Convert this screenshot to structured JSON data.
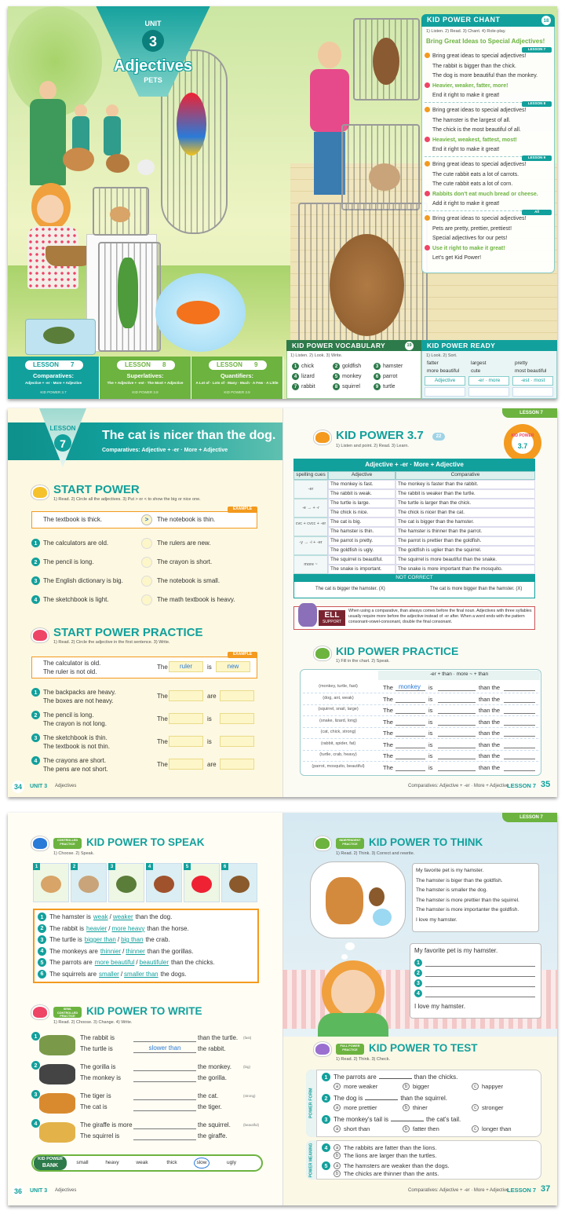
{
  "spread1": {
    "unit": {
      "label": "UNIT",
      "number": "3",
      "title": "Adjectives",
      "subtitle": "PETS"
    },
    "lessons": [
      {
        "label": "LESSON",
        "number": "7",
        "topic": "Comparatives:",
        "detail": "Adjective + -er · More + Adjective",
        "code": "KID POWER 3.7"
      },
      {
        "label": "LESSON",
        "number": "8",
        "topic": "Superlatives:",
        "detail": "The + Adjective + -est · The Most + Adjective",
        "code": "KID POWER 3.8"
      },
      {
        "label": "LESSON",
        "number": "9",
        "topic": "Quantifiers:",
        "detail": "A Lot of · Lots of · Many · Much · A Few · A Little",
        "code": "KID POWER 3.9"
      }
    ],
    "chant": {
      "title": "KID POWER CHANT",
      "page": "18",
      "instructions": "1) Listen. 2) Read. 3) Chant. 4) Role-play.",
      "heading": "Bring Great Ideas to Special Adjectives!",
      "verses": [
        {
          "tag": "LESSON 7",
          "lines": [
            "Bring great ideas to special adjectives!",
            "The rabbit is bigger than the chick.",
            "The dog is more beautiful than the monkey.",
            "Heavier, weaker, fatter, more!",
            "End it right to make it great!"
          ]
        },
        {
          "tag": "LESSON 8",
          "lines": [
            "Bring great ideas to special adjectives!",
            "The hamster is the largest of all.",
            "The chick is the most beautiful of all.",
            "Heaviest, weakest, fattest, most!",
            "End it right to make it great!"
          ]
        },
        {
          "tag": "LESSON 9",
          "lines": [
            "Bring great ideas to special adjectives!",
            "The cute rabbit eats a lot of carrots.",
            "The cute rabbit eats a lot of corn.",
            "Rabbits don't eat much bread or cheese.",
            "Add it right to make it great!"
          ]
        },
        {
          "tag": "All",
          "lines": [
            "Bring great ideas to special adjectives!",
            "Pets are pretty, prettier, prettiest!",
            "Special adjectives for our pets!",
            "Use it right to make it great!",
            "Let's get Kid Power!"
          ]
        }
      ]
    },
    "vocabulary": {
      "title": "KID POWER VOCABULARY",
      "page": "19",
      "instructions": "1) Listen. 2) Look. 3) Write.",
      "words": [
        {
          "number": "1",
          "word": "chick"
        },
        {
          "number": "2",
          "word": "goldfish"
        },
        {
          "number": "3",
          "word": "hamster"
        },
        {
          "number": "4",
          "word": "lizard"
        },
        {
          "number": "5",
          "word": "monkey"
        },
        {
          "number": "6",
          "word": "parrot"
        },
        {
          "number": "7",
          "word": "rabbit"
        },
        {
          "number": "8",
          "word": "squirrel"
        },
        {
          "number": "9",
          "word": "turtle"
        }
      ]
    },
    "ready": {
      "title": "KID POWER READY",
      "instructions": "1) Look. 2) Sort.",
      "words": [
        "fatter",
        "largest",
        "pretty",
        "more beautiful",
        "cute",
        "most beautiful"
      ],
      "columns": [
        "Adjective",
        "-er · more",
        "-est · most"
      ]
    }
  },
  "spread2": {
    "tab": "LESSON 7",
    "header": {
      "label": "LESSON",
      "number": "7",
      "title": "The cat is nicer than the dog.",
      "subtitle": "Comparatives: Adjective + -er · More + Adjective"
    },
    "start_power": {
      "title": "START POWER",
      "instructions": "1) Read. 2) Circle all the adjectives. 3) Put > or < to show the big or nice one.",
      "example_label": "EXAMPLE",
      "example": {
        "left": "The textbook is thick.",
        "symbol": ">",
        "right": "The notebook is thin."
      },
      "items": [
        {
          "number": "1",
          "left": "The calculators are old.",
          "right": "The rulers are new."
        },
        {
          "number": "2",
          "left": "The pencil is long.",
          "right": "The crayon is short."
        },
        {
          "number": "3",
          "left": "The English dictionary is big.",
          "right": "The notebook is small."
        },
        {
          "number": "4",
          "left": "The sketchbook is light.",
          "right": "The math textbook is heavy."
        }
      ]
    },
    "start_power_practice": {
      "title": "START POWER PRACTICE",
      "instructions": "1) Read. 2) Circle the adjective in the first sentence. 3) Write.",
      "example_label": "EXAMPLE",
      "example": {
        "first": "The calculator is old.",
        "second": "The ruler is not old.",
        "start": "The",
        "noun": "ruler",
        "verb": "is",
        "adjective": "new"
      },
      "start": "The",
      "items": [
        {
          "number": "1",
          "first": "The backpacks are heavy.",
          "second": "The boxes are not heavy.",
          "verb": "are"
        },
        {
          "number": "2",
          "first": "The pencil is long.",
          "second": "The crayon is not long.",
          "verb": "is"
        },
        {
          "number": "3",
          "first": "The sketchbook is thin.",
          "second": "The textbook is not thin.",
          "verb": "is"
        },
        {
          "number": "4",
          "first": "The crayons are short.",
          "second": "The pens are not short.",
          "verb": "are"
        }
      ]
    },
    "kid_power": {
      "title": "KID POWER 3.7",
      "badge_top": "KID POWER",
      "badge_bottom": "3.7",
      "page": "22",
      "instructions": "1) Listen and point. 2) Read. 3) Learn.",
      "table_title": "Adjective + -er · More + Adjective",
      "columns": [
        "spelling cues",
        "Adjective",
        "Comparative"
      ],
      "groups": [
        {
          "cue": "-er",
          "rows": [
            [
              "The monkey is fast.",
              "The monkey is faster than the rabbit."
            ],
            [
              "The rabbit is weak.",
              "The rabbit is weaker than the turtle."
            ]
          ]
        },
        {
          "cue": "-e → + -r",
          "rows": [
            [
              "The turtle is large.",
              "The turtle is larger than the chick."
            ],
            [
              "The chick is nice.",
              "The chick is nicer than the cat."
            ]
          ]
        },
        {
          "cue": "cvc + cvcc + -er",
          "rows": [
            [
              "The cat is big.",
              "The cat is bigger than the hamster."
            ],
            [
              "The hamster is thin.",
              "The hamster is thinner than the parrot."
            ]
          ]
        },
        {
          "cue": "-y → -i + -er",
          "rows": [
            [
              "The parrot is pretty.",
              "The parrot is prettier than the goldfish."
            ],
            [
              "The goldfish is ugly.",
              "The goldfish is uglier than the squirrel."
            ]
          ]
        },
        {
          "cue": "more ~",
          "rows": [
            [
              "The squirrel is beautiful.",
              "The squirrel is more beautiful than the snake."
            ],
            [
              "The snake is important.",
              "The snake is more important than the mosquito."
            ]
          ]
        }
      ],
      "not_correct": "NOT CORRECT",
      "wrong": [
        "The cat is bigger the hamster. (X)",
        "The cat is more bigger than the hamster. (X)"
      ]
    },
    "ell": {
      "label": "ELL",
      "sub": "SUPPORT",
      "text": "When using a comparative, than always comes before the final noun. Adjectives with three syllables usually require more before the adjective instead of -er after. When a word ends with the pattern consonant-vowel-consonant, double the final consonant."
    },
    "practice": {
      "title": "KID POWER PRACTICE",
      "instructions": "1) Fill in the chart. 2) Speak.",
      "header": "-er + than · more ~ + than",
      "template": [
        "The",
        "is",
        "than the"
      ],
      "answer": "monkey",
      "clues": [
        "(monkey, turtle, fast)",
        "(dog, ant, weak)",
        "(squirrel, snail, large)",
        "(snake, lizard, long)",
        "(cat, chick, strong)",
        "(rabbit, spider, fat)",
        "(turtle, crab, heavy)",
        "(parrot, mosquito, beautiful)"
      ]
    },
    "footer_left": {
      "page": "34",
      "unit": "UNIT 3",
      "topic": "Adjectives"
    },
    "footer_right": {
      "topic": "Comparatives: Adjective + -er · More + Adjective",
      "lesson": "LESSON 7",
      "page": "35"
    }
  },
  "spread3": {
    "tab": "LESSON 7",
    "speak": {
      "tag": "CONTROLLED PRACTICE",
      "title": "KID POWER TO SPEAK",
      "instructions": "1) Choose. 2) Speak.",
      "pictures": [
        "1",
        "2",
        "3",
        "4",
        "5",
        "6"
      ],
      "separator": "/",
      "sentences": [
        {
          "number": "1",
          "before": "The hamster is",
          "a": "weak",
          "b": "weaker",
          "after": "than the dog."
        },
        {
          "number": "2",
          "before": "The rabbit is",
          "a": "heavier",
          "b": "more heavy",
          "after": "than the horse."
        },
        {
          "number": "3",
          "before": "The turtle is",
          "a": "bigger than",
          "b": "big than",
          "after": "the crab."
        },
        {
          "number": "4",
          "before": "The monkeys are",
          "a": "thinnier",
          "b": "thinner",
          "after": "than the gorillas."
        },
        {
          "number": "5",
          "before": "The parrots are",
          "a": "more beautiful",
          "b": "beautifuler",
          "after": "than the chicks."
        },
        {
          "number": "6",
          "before": "The squirrels are",
          "a": "smaller",
          "b": "smaller than",
          "after": "the dogs."
        }
      ]
    },
    "write": {
      "tag": "SEMI-CONTROLLED PRACTICE",
      "title": "KID POWER TO WRITE",
      "instructions": "1) Read. 2) Choose. 3) Change. 4) Write.",
      "items": [
        {
          "number": "1",
          "start1": "The rabbit is",
          "end1": "than the turtle.",
          "hint": "(fast)",
          "start2": "The turtle is",
          "answer": "slower than",
          "end2": "the rabbit."
        },
        {
          "number": "2",
          "start1": "The gorilla is",
          "end1": "the monkey.",
          "hint": "(big)",
          "start2": "The monkey is",
          "end2": "the gorilla."
        },
        {
          "number": "3",
          "start1": "The tiger is",
          "end1": "the cat.",
          "hint": "(strong)",
          "start2": "The cat is",
          "end2": "the tiger."
        },
        {
          "number": "4",
          "start1": "The giraffe is more",
          "end1": "the squirrel.",
          "hint": "(beautiful)",
          "start2": "The squirrel is",
          "end2": "the giraffe."
        }
      ],
      "bank_label": "KID POWER",
      "bank_sub": "BANK",
      "bank": [
        "small",
        "heavy",
        "weak",
        "thick",
        "slow",
        "ugly"
      ]
    },
    "think": {
      "tag": "INDEPENDENT PRACTICE",
      "title": "KID POWER TO THINK",
      "instructions": "1) Read. 2) Think. 3) Correct and rewrite.",
      "letter": [
        "My favorite pet is my hamster.",
        "The hamster is biger than the goldfish.",
        "The hamster is smaller the dog.",
        "The hamster is more prettier than the squirrel.",
        "The hamster is more importanter the goldfish.",
        "I love my hamster."
      ],
      "rewrite_start": "My favorite pet is my hamster.",
      "rewrite_numbers": [
        "1",
        "2",
        "3",
        "4"
      ],
      "rewrite_end": "I love my hamster."
    },
    "test": {
      "tag": "FULL POWER PRACTICE",
      "title": "KID POWER TO TEST",
      "instructions": "1) Read. 2) Think. 3) Check.",
      "form_label": "POWER FORM",
      "letters": [
        "a",
        "b",
        "c"
      ],
      "form": [
        {
          "number": "1",
          "before": "The parrots are",
          "after": "than the chicks.",
          "options": [
            "more weaker",
            "bigger",
            "happyer"
          ]
        },
        {
          "number": "2",
          "before": "The dog is",
          "after": "than the squirrel.",
          "options": [
            "more prettier",
            "thiner",
            "stronger"
          ]
        },
        {
          "number": "3",
          "before": "The monkey's tail is",
          "after": "the cat's tail.",
          "options": [
            "short than",
            "fatter then",
            "longer than"
          ]
        }
      ],
      "meaning_label": "POWER MEANING",
      "meaning": [
        {
          "number": "4",
          "options": [
            "The rabbits are fatter than the lions.",
            "The lions are larger than the turtles."
          ]
        },
        {
          "number": "5",
          "options": [
            "The hamsters are weaker than the dogs.",
            "The chicks are thinner than the ants."
          ]
        }
      ]
    },
    "footer_left": {
      "page": "36",
      "unit": "UNIT 3",
      "topic": "Adjectives"
    },
    "footer_right": {
      "topic": "Comparatives: Adjective + -er · More + Adjective",
      "lesson": "LESSON 7",
      "page": "37"
    }
  }
}
